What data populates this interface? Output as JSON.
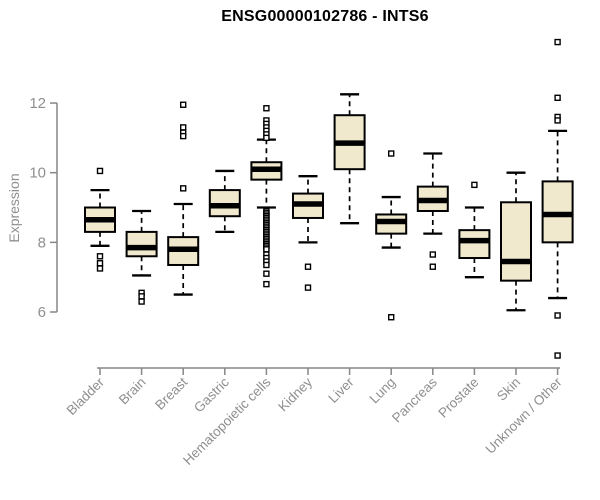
{
  "chart_data": {
    "type": "boxplot",
    "title": "ENSG00000102786 - INTS6",
    "ylabel": "Expression",
    "xlabel": "",
    "yticks": [
      6,
      8,
      10,
      12
    ],
    "ylim": [
      4.5,
      13.9
    ],
    "grid": false,
    "legend": "none",
    "colors": {
      "box_fill": "#f0e9ce",
      "box_border": "#000000",
      "median": "#000000",
      "whisker": "#000000",
      "outlier_fill": "#ffffff",
      "axis": "#878787",
      "tick_label": "#8f8f8f",
      "title": "#000000"
    },
    "categories": [
      "Bladder",
      "Brain",
      "Breast",
      "Gastric",
      "Hematopoietic cells",
      "Kidney",
      "Liver",
      "Lung",
      "Pancreas",
      "Prostate",
      "Skin",
      "Unknown / Other"
    ],
    "boxes": [
      {
        "category": "Bladder",
        "low": 7.9,
        "q1": 8.3,
        "median": 8.65,
        "q3": 9.0,
        "high": 9.5,
        "outliers": [
          10.05,
          7.6,
          7.4,
          7.25
        ]
      },
      {
        "category": "Brain",
        "low": 7.05,
        "q1": 7.6,
        "median": 7.85,
        "q3": 8.3,
        "high": 8.9,
        "outliers": [
          6.55,
          6.45,
          6.3
        ]
      },
      {
        "category": "Breast",
        "low": 6.5,
        "q1": 7.35,
        "median": 7.8,
        "q3": 8.15,
        "high": 9.1,
        "outliers": [
          11.95,
          11.3,
          11.15,
          11.05,
          9.55
        ]
      },
      {
        "category": "Gastric",
        "low": 8.3,
        "q1": 8.75,
        "median": 9.05,
        "q3": 9.5,
        "high": 10.05,
        "outliers": []
      },
      {
        "category": "Hematopoietic cells",
        "low": 9.0,
        "q1": 9.8,
        "median": 10.1,
        "q3": 10.3,
        "high": 10.95,
        "outliers": [
          11.85,
          11.5,
          11.4,
          11.3,
          11.2,
          11.1,
          11.0,
          8.9,
          8.85,
          8.8,
          8.75,
          8.7,
          8.65,
          8.6,
          8.55,
          8.5,
          8.45,
          8.4,
          8.35,
          8.3,
          8.25,
          8.2,
          8.15,
          8.1,
          8.05,
          8.0,
          7.95,
          7.9,
          7.85,
          7.8,
          7.65,
          7.55,
          7.45,
          7.35,
          7.1,
          6.8
        ]
      },
      {
        "category": "Kidney",
        "low": 8.0,
        "q1": 8.7,
        "median": 9.1,
        "q3": 9.4,
        "high": 9.9,
        "outliers": [
          7.3,
          6.7
        ]
      },
      {
        "category": "Liver",
        "low": 8.55,
        "q1": 10.1,
        "median": 10.85,
        "q3": 11.65,
        "high": 12.25,
        "outliers": []
      },
      {
        "category": "Lung",
        "low": 7.85,
        "q1": 8.25,
        "median": 8.6,
        "q3": 8.8,
        "high": 9.3,
        "outliers": [
          10.55,
          5.85
        ]
      },
      {
        "category": "Pancreas",
        "low": 8.25,
        "q1": 8.9,
        "median": 9.2,
        "q3": 9.6,
        "high": 10.55,
        "outliers": [
          7.65,
          7.3
        ]
      },
      {
        "category": "Prostate",
        "low": 7.0,
        "q1": 7.55,
        "median": 8.05,
        "q3": 8.35,
        "high": 9.0,
        "outliers": [
          9.65
        ]
      },
      {
        "category": "Skin",
        "low": 6.05,
        "q1": 6.9,
        "median": 7.45,
        "q3": 9.15,
        "high": 10.0,
        "outliers": []
      },
      {
        "category": "Unknown / Other",
        "low": 6.4,
        "q1": 8.0,
        "median": 8.8,
        "q3": 9.75,
        "high": 11.2,
        "outliers": [
          13.75,
          12.15,
          11.6,
          11.5,
          5.9,
          4.75
        ]
      }
    ]
  }
}
